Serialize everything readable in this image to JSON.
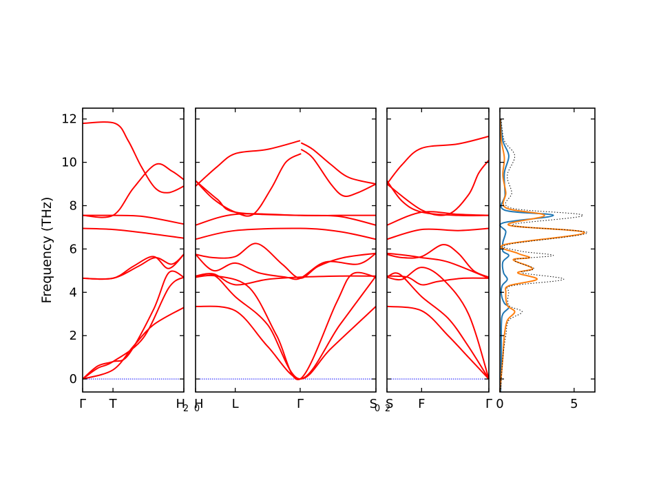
{
  "chart_data": {
    "type": "line",
    "ylabel": "Frequency (THz)",
    "ylim": [
      -0.6,
      12.5
    ],
    "y_ticks": [
      0,
      2,
      4,
      6,
      8,
      10,
      12
    ],
    "zero_line_color": "#0000ff",
    "band_color": "#ff0000",
    "panels": [
      {
        "name": "Γ-T-H2",
        "x_tick_labels": [
          "Γ",
          "T",
          "H"
        ],
        "x_tick_positions": [
          0,
          0.3,
          1
        ],
        "bands": [
          {
            "x": [
              0,
              0.3,
              0.5,
              0.7,
              1
            ],
            "y": [
              0,
              0.42,
              1.5,
              2.5,
              3.3
            ]
          },
          {
            "x": [
              0,
              0.15,
              0.3,
              0.6,
              0.85,
              1
            ],
            "y": [
              0,
              0.5,
              0.8,
              1.9,
              4.2,
              4.7
            ]
          },
          {
            "x": [
              0,
              0.15,
              0.3,
              0.45,
              0.7,
              0.85,
              1
            ],
            "y": [
              0,
              0.6,
              0.8,
              1.1,
              3.2,
              4.9,
              4.7
            ]
          },
          {
            "x": [
              0,
              0.3,
              0.55,
              0.72,
              0.88,
              1
            ],
            "y": [
              4.65,
              4.65,
              5.2,
              5.6,
              5.3,
              5.75
            ]
          },
          {
            "x": [
              0,
              0.3,
              0.5,
              0.7,
              0.85,
              1
            ],
            "y": [
              4.65,
              4.65,
              5.2,
              5.65,
              5.1,
              5.75
            ]
          },
          {
            "x": [
              0,
              0.3,
              0.6,
              1
            ],
            "y": [
              6.95,
              6.9,
              6.75,
              6.5
            ]
          },
          {
            "x": [
              0,
              0.3,
              0.6,
              1
            ],
            "y": [
              7.55,
              7.55,
              7.5,
              7.15
            ]
          },
          {
            "x": [
              0,
              0.3,
              0.5,
              0.72,
              0.88,
              1
            ],
            "y": [
              7.55,
              7.55,
              8.8,
              9.9,
              9.6,
              9.2
            ]
          },
          {
            "x": [
              0,
              0.32,
              0.45,
              0.58,
              0.72,
              0.85,
              1
            ],
            "y": [
              11.8,
              11.8,
              11.0,
              9.8,
              8.8,
              8.6,
              8.9
            ]
          }
        ]
      },
      {
        "name": "H0-L-Γ-S0",
        "x_tick_labels": [
          "H",
          "L",
          "Γ",
          "S"
        ],
        "x_tick_positions": [
          0,
          0.22,
          0.58,
          1
        ],
        "bands": [
          {
            "x": [
              0,
              0.22,
              0.4,
              0.58,
              0.75,
              1
            ],
            "y": [
              3.35,
              3.15,
              1.5,
              0,
              1.4,
              3.35
            ]
          },
          {
            "x": [
              0,
              0.1,
              0.22,
              0.4,
              0.58,
              0.8,
              1
            ],
            "y": [
              4.7,
              4.8,
              3.8,
              2.5,
              0,
              2.5,
              4.75
            ]
          },
          {
            "x": [
              0,
              0.12,
              0.3,
              0.45,
              0.58,
              0.78,
              0.87,
              1
            ],
            "y": [
              4.7,
              4.75,
              4.2,
              2.0,
              0,
              3.5,
              4.85,
              4.7
            ]
          },
          {
            "x": [
              0,
              0.1,
              0.22,
              0.4,
              0.58,
              0.8,
              1
            ],
            "y": [
              4.75,
              4.85,
              4.35,
              4.6,
              4.7,
              4.75,
              4.75
            ]
          },
          {
            "x": [
              0,
              0.1,
              0.22,
              0.35,
              0.5,
              0.58,
              0.72,
              0.9,
              1
            ],
            "y": [
              5.75,
              5.0,
              5.35,
              4.9,
              4.7,
              4.65,
              5.4,
              5.3,
              5.8
            ]
          },
          {
            "x": [
              0,
              0.1,
              0.22,
              0.34,
              0.48,
              0.58,
              0.68,
              0.82,
              1
            ],
            "y": [
              5.75,
              5.6,
              5.65,
              6.25,
              5.3,
              4.65,
              5.2,
              5.6,
              5.8
            ]
          },
          {
            "x": [
              0,
              0.22,
              0.58,
              0.8,
              1
            ],
            "y": [
              6.45,
              6.85,
              6.95,
              6.8,
              6.45
            ]
          },
          {
            "x": [
              0,
              0.22,
              0.58,
              0.8,
              1
            ],
            "y": [
              7.1,
              7.6,
              7.55,
              7.5,
              7.1
            ]
          },
          {
            "x": [
              0,
              0.12,
              0.22,
              0.58,
              0.8,
              1
            ],
            "y": [
              9.15,
              8.3,
              7.7,
              7.55,
              7.55,
              7.55
            ]
          },
          {
            "x": [
              0,
              0.12,
              0.22,
              0.4,
              0.58
            ],
            "y": [
              8.9,
              9.8,
              10.4,
              10.6,
              11.0
            ]
          },
          {
            "x": [
              0,
              0.1,
              0.22,
              0.32,
              0.42,
              0.5,
              0.585
            ],
            "y": [
              9.15,
              8.3,
              7.7,
              7.6,
              8.8,
              10.0,
              10.4
            ]
          },
          {
            "x": [
              0.585,
              0.65,
              0.75,
              0.85,
              1
            ],
            "y": [
              10.9,
              10.6,
              9.9,
              9.3,
              9.0
            ]
          },
          {
            "x": [
              0.585,
              0.65,
              0.75,
              0.82,
              0.9,
              1
            ],
            "y": [
              10.6,
              10.2,
              9.0,
              8.45,
              8.6,
              9.0
            ]
          }
        ]
      },
      {
        "name": "S2-F-Γ",
        "x_tick_labels": [
          "S",
          "F",
          "Γ"
        ],
        "x_tick_positions": [
          0,
          0.34,
          1
        ],
        "bands": [
          {
            "x": [
              0,
              0.34,
              0.6,
              0.8,
              1
            ],
            "y": [
              3.35,
              3.15,
              2.0,
              1.0,
              0
            ]
          },
          {
            "x": [
              0,
              0.12,
              0.34,
              0.6,
              0.8,
              1
            ],
            "y": [
              4.7,
              4.85,
              3.8,
              2.8,
              1.5,
              0
            ]
          },
          {
            "x": [
              0,
              0.15,
              0.34,
              0.55,
              0.8,
              1
            ],
            "y": [
              4.7,
              4.6,
              5.15,
              4.6,
              3.0,
              0
            ]
          },
          {
            "x": [
              0,
              0.2,
              0.34,
              0.5,
              0.75,
              1
            ],
            "y": [
              4.75,
              4.7,
              4.35,
              4.5,
              4.65,
              4.65
            ]
          },
          {
            "x": [
              0,
              0.15,
              0.34,
              0.55,
              0.7,
              0.85,
              1
            ],
            "y": [
              5.75,
              5.6,
              5.65,
              6.2,
              5.8,
              5.0,
              4.7
            ]
          },
          {
            "x": [
              0,
              0.2,
              0.34,
              0.6,
              1
            ],
            "y": [
              5.8,
              5.7,
              5.6,
              5.4,
              4.65
            ]
          },
          {
            "x": [
              0,
              0.34,
              0.7,
              1
            ],
            "y": [
              6.45,
              6.9,
              6.85,
              6.95
            ]
          },
          {
            "x": [
              0,
              0.34,
              0.7,
              1
            ],
            "y": [
              7.1,
              7.7,
              7.6,
              7.55
            ]
          },
          {
            "x": [
              0,
              0.15,
              0.34,
              0.7,
              1
            ],
            "y": [
              9.15,
              8.2,
              7.7,
              7.55,
              7.55
            ]
          },
          {
            "x": [
              0,
              0.15,
              0.34,
              0.7,
              1
            ],
            "y": [
              9.0,
              9.9,
              10.65,
              10.85,
              11.2
            ]
          },
          {
            "x": [
              0,
              0.34,
              0.6,
              0.8,
              0.9,
              1
            ],
            "y": [
              9.0,
              7.8,
              7.6,
              8.5,
              9.5,
              10.1
            ]
          }
        ]
      }
    ],
    "dos": {
      "xlim": [
        0,
        6.4
      ],
      "x_ticks": [
        0,
        5
      ],
      "total_style": "dotted black",
      "series": [
        {
          "color": "#1f77b4",
          "points": [
            [
              0.05,
              -0.6
            ],
            [
              0.1,
              1
            ],
            [
              0.1,
              2.5
            ],
            [
              0.2,
              3.0
            ],
            [
              0.6,
              3.3
            ],
            [
              0.3,
              3.5
            ],
            [
              0.1,
              3.9
            ],
            [
              0.15,
              4.3
            ],
            [
              0.5,
              4.6
            ],
            [
              0.25,
              4.9
            ],
            [
              0.2,
              5.4
            ],
            [
              0.6,
              5.7
            ],
            [
              0.2,
              5.9
            ],
            [
              0.2,
              6.3
            ],
            [
              0.4,
              6.8
            ],
            [
              0.2,
              7.2
            ],
            [
              3.6,
              7.55
            ],
            [
              0.3,
              7.8
            ],
            [
              0.35,
              8.5
            ],
            [
              0.3,
              9.5
            ],
            [
              0.6,
              10.3
            ],
            [
              0.2,
              11.0
            ],
            [
              0.05,
              12.0
            ]
          ]
        },
        {
          "color": "#ff7f0e",
          "points": [
            [
              0.0,
              -0.6
            ],
            [
              0.2,
              1.0
            ],
            [
              0.3,
              2.0
            ],
            [
              0.5,
              2.7
            ],
            [
              1.0,
              3.1
            ],
            [
              0.5,
              3.4
            ],
            [
              0.4,
              4.0
            ],
            [
              0.6,
              4.3
            ],
            [
              2.5,
              4.6
            ],
            [
              1.2,
              4.9
            ],
            [
              2.2,
              5.1
            ],
            [
              0.9,
              5.5
            ],
            [
              2.0,
              5.6
            ],
            [
              1.2,
              5.8
            ],
            [
              0.3,
              6.2
            ],
            [
              5.7,
              6.75
            ],
            [
              0.6,
              7.1
            ],
            [
              3.0,
              7.55
            ],
            [
              0.4,
              7.9
            ],
            [
              0.4,
              8.6
            ],
            [
              0.2,
              9.4
            ],
            [
              0.3,
              10.2
            ],
            [
              0.1,
              11.0
            ],
            [
              0.02,
              12.0
            ]
          ]
        },
        {
          "color": "#000000",
          "points": [
            [
              0.05,
              -0.6
            ],
            [
              0.2,
              1.0
            ],
            [
              0.4,
              2.0
            ],
            [
              0.6,
              2.7
            ],
            [
              1.5,
              3.1
            ],
            [
              0.6,
              3.4
            ],
            [
              0.6,
              4.0
            ],
            [
              0.8,
              4.3
            ],
            [
              4.3,
              4.6
            ],
            [
              1.5,
              4.9
            ],
            [
              2.3,
              5.1
            ],
            [
              1.0,
              5.5
            ],
            [
              3.6,
              5.7
            ],
            [
              1.4,
              5.9
            ],
            [
              0.5,
              6.2
            ],
            [
              5.9,
              6.75
            ],
            [
              0.8,
              7.1
            ],
            [
              5.6,
              7.55
            ],
            [
              0.7,
              7.9
            ],
            [
              0.8,
              8.6
            ],
            [
              0.5,
              9.4
            ],
            [
              1.0,
              10.3
            ],
            [
              0.3,
              11.0
            ],
            [
              0.08,
              12.0
            ]
          ]
        }
      ]
    }
  }
}
